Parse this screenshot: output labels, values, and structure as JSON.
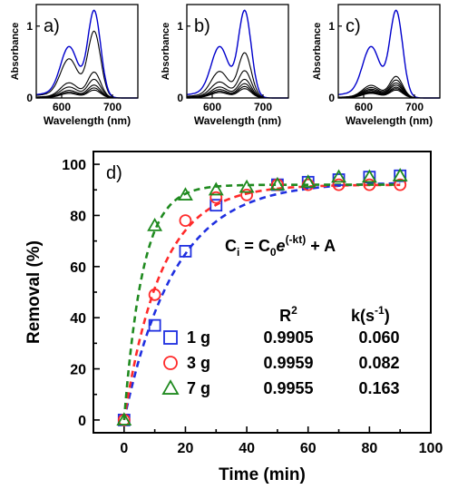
{
  "chart_data": [
    {
      "panel": "a)",
      "type": "line",
      "xlabel": "Wavelength (nm)",
      "ylabel": "Absorbance",
      "xlim": [
        550,
        750
      ],
      "ylim": [
        0,
        1.3
      ],
      "xticks": [
        600,
        700
      ],
      "yticks": [
        0,
        1
      ],
      "series": [
        {
          "color": "#0000cc",
          "peak": 1.22
        },
        {
          "color": "#000000",
          "peak": 0.93
        },
        {
          "color": "#000000",
          "peak": 0.36
        },
        {
          "color": "#000000",
          "peak": 0.26
        },
        {
          "color": "#000000",
          "peak": 0.18
        },
        {
          "color": "#000000",
          "peak": 0.14
        },
        {
          "color": "#000000",
          "peak": 0.11
        }
      ]
    },
    {
      "panel": "b)",
      "type": "line",
      "xlabel": "Wavelength (nm)",
      "ylabel": "Absorbance",
      "xlim": [
        550,
        750
      ],
      "ylim": [
        0,
        1.3
      ],
      "xticks": [
        600,
        700
      ],
      "yticks": [
        0,
        1
      ],
      "series": [
        {
          "color": "#0000cc",
          "peak": 1.22
        },
        {
          "color": "#000000",
          "peak": 0.63
        },
        {
          "color": "#000000",
          "peak": 0.38
        },
        {
          "color": "#000000",
          "peak": 0.26
        },
        {
          "color": "#000000",
          "peak": 0.2
        },
        {
          "color": "#000000",
          "peak": 0.16
        },
        {
          "color": "#000000",
          "peak": 0.13
        }
      ]
    },
    {
      "panel": "c)",
      "type": "line",
      "xlabel": "Wavelength (nm)",
      "ylabel": "Absorbance",
      "xlim": [
        550,
        750
      ],
      "ylim": [
        0,
        1.3
      ],
      "xticks": [
        600,
        700
      ],
      "yticks": [
        0,
        1
      ],
      "series": [
        {
          "color": "#0000cc",
          "peak": 1.22
        },
        {
          "color": "#000000",
          "peak": 0.3
        },
        {
          "color": "#000000",
          "peak": 0.25
        },
        {
          "color": "#000000",
          "peak": 0.21
        },
        {
          "color": "#000000",
          "peak": 0.18
        },
        {
          "color": "#000000",
          "peak": 0.15
        },
        {
          "color": "#000000",
          "peak": 0.13
        },
        {
          "color": "#000000",
          "peak": 0.11
        }
      ]
    },
    {
      "panel": "d)",
      "type": "scatter",
      "xlabel": "Time (min)",
      "ylabel": "Removal (%)",
      "xlim": [
        -10,
        100
      ],
      "ylim": [
        -5,
        105
      ],
      "xticks": [
        0,
        20,
        40,
        60,
        80,
        100
      ],
      "yticks": [
        0,
        20,
        40,
        60,
        80,
        100
      ],
      "equation": {
        "lhs": "C",
        "lhs_sub": "i",
        "c0": "C",
        "c0_sub": "0",
        "e": "e",
        "exponent": "(-kt)",
        "tail": "+ A"
      },
      "table_headers": {
        "r2": "R",
        "r2_sup": "2",
        "k": "k(s",
        "k_sup": "-1",
        "k_close": ")"
      },
      "series": [
        {
          "name": "1 g",
          "marker": "square",
          "color": "#1f2fe0",
          "R2": "0.9905",
          "k": "0.060",
          "x": [
            0,
            10,
            20,
            30,
            50,
            60,
            70,
            80,
            90
          ],
          "y": [
            0,
            37,
            66,
            84,
            92,
            93,
            94,
            95,
            95.5
          ],
          "fit": {
            "A": 93,
            "k": 0.06
          }
        },
        {
          "name": "3 g",
          "marker": "circle",
          "color": "#ff2a2a",
          "R2": "0.9959",
          "k": "0.082",
          "x": [
            0,
            10,
            20,
            30,
            40,
            50,
            60,
            70,
            80,
            90
          ],
          "y": [
            0,
            49,
            78,
            87,
            88,
            92,
            92,
            92,
            92,
            92
          ],
          "fit": {
            "A": 92,
            "k": 0.082
          }
        },
        {
          "name": "7 g",
          "marker": "triangle",
          "color": "#1f8a1f",
          "R2": "0.9955",
          "k": "0.163",
          "x": [
            0,
            10,
            20,
            30,
            40,
            50,
            60,
            70,
            80,
            90
          ],
          "y": [
            0,
            76,
            88,
            90,
            91,
            92,
            93,
            95,
            95,
            95.5
          ],
          "fit": {
            "A": 92,
            "k": 0.163
          }
        }
      ]
    }
  ]
}
